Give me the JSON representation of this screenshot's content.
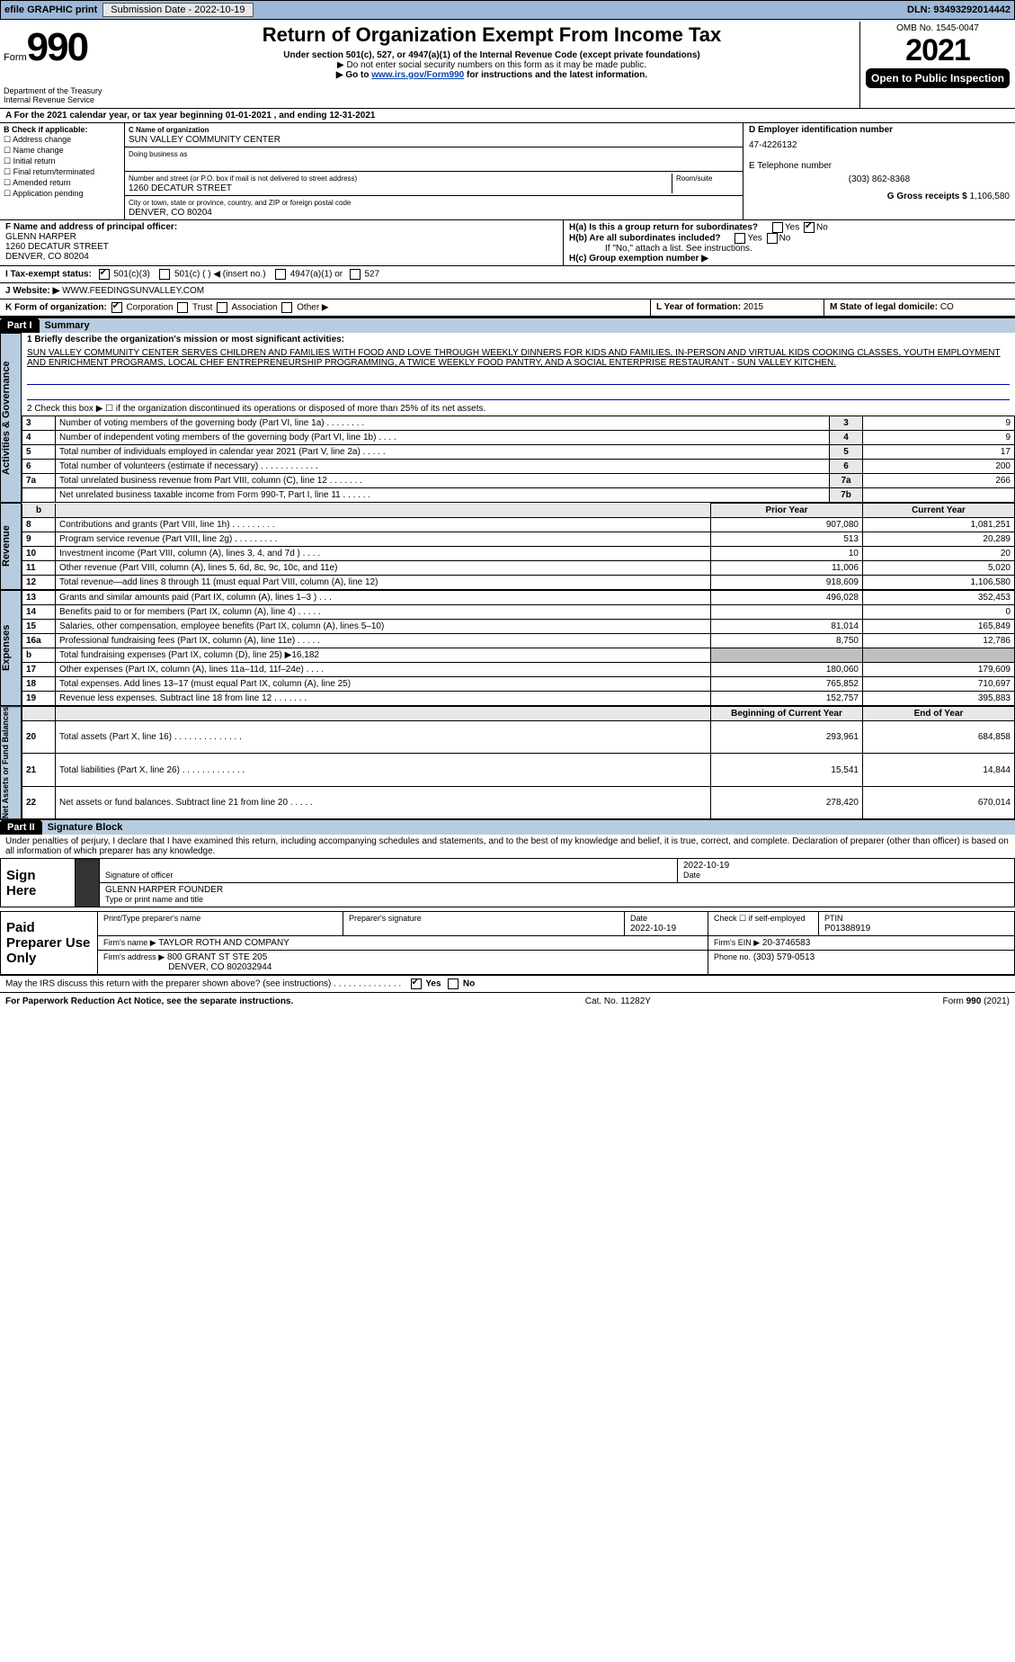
{
  "topbar": {
    "efile": "efile GRAPHIC print",
    "subdate_label": "Submission Date - 2022-10-19",
    "dln_label": "DLN: 93493292014442"
  },
  "form": {
    "prefix": "Form",
    "number": "990",
    "title": "Return of Organization Exempt From Income Tax",
    "subtitle1": "Under section 501(c), 527, or 4947(a)(1) of the Internal Revenue Code (except private foundations)",
    "subtitle2": "▶ Do not enter social security numbers on this form as it may be made public.",
    "subtitle3": "▶ Go to www.irs.gov/Form990 for instructions and the latest information.",
    "subtitle3_link": "www.irs.gov/Form990",
    "omb": "OMB No. 1545-0047",
    "year": "2021",
    "otp": "Open to Public Inspection",
    "dept": "Department of the Treasury Internal Revenue Service"
  },
  "a_line": "A For the 2021 calendar year, or tax year beginning 01-01-2021    , and ending 12-31-2021",
  "b": {
    "label": "B Check if applicable:",
    "items": [
      "Address change",
      "Name change",
      "Initial return",
      "Final return/terminated",
      "Amended return",
      "Application pending"
    ]
  },
  "c": {
    "name_label": "C Name of organization",
    "name": "SUN VALLEY COMMUNITY CENTER",
    "dba_label": "Doing business as",
    "street_label": "Number and street (or P.O. box if mail is not delivered to street address)",
    "room_label": "Room/suite",
    "street": "1260 DECATUR STREET",
    "city_label": "City or town, state or province, country, and ZIP or foreign postal code",
    "city": "DENVER, CO  80204"
  },
  "d": {
    "ein_label": "D Employer identification number",
    "ein": "47-4226132"
  },
  "e": {
    "label": "E Telephone number",
    "phone": "(303) 862-8368"
  },
  "g": {
    "label": "G Gross receipts $",
    "amount": "1,106,580"
  },
  "f": {
    "label": "F  Name and address of principal officer:",
    "name": "GLENN HARPER",
    "addr1": "1260 DECATUR STREET",
    "addr2": "DENVER, CO  80204"
  },
  "h": {
    "a_label": "H(a)  Is this a group return for subordinates?",
    "a_yes": "Yes",
    "a_no": "No",
    "b_label": "H(b)  Are all subordinates included?",
    "b_yes": "Yes",
    "b_no": "No",
    "b_note": "If \"No,\" attach a list. See instructions.",
    "c_label": "H(c)  Group exemption number ▶"
  },
  "i": {
    "label": "I  Tax-exempt status:",
    "c3": "501(c)(3)",
    "c": "501(c) (  ) ◀ (insert no.)",
    "a1": "4947(a)(1) or",
    "s527": "527"
  },
  "j": {
    "label": "J   Website: ▶",
    "url": "WWW.FEEDINGSUNVALLEY.COM"
  },
  "k": {
    "label": "K Form of organization:",
    "corp": "Corporation",
    "trust": "Trust",
    "assoc": "Association",
    "other": "Other ▶"
  },
  "l": {
    "label": "L Year of formation:",
    "val": "2015"
  },
  "m": {
    "label": "M State of legal domicile:",
    "val": "CO"
  },
  "part1": {
    "hdr": "Part I",
    "title": "Summary",
    "l1_label": "1  Briefly describe the organization's mission or most significant activities:",
    "mission": "SUN VALLEY COMMUNITY CENTER SERVES CHILDREN AND FAMILIES WITH FOOD AND LOVE THROUGH WEEKLY DINNERS FOR KIDS AND FAMILIES, IN-PERSON AND VIRTUAL KIDS COOKING CLASSES, YOUTH EMPLOYMENT AND ENRICHMENT PROGRAMS, LOCAL CHEF ENTREPRENEURSHIP PROGRAMMING, A TWICE WEEKLY FOOD PANTRY, AND A SOCIAL ENTERPRISE RESTAURANT - SUN VALLEY KITCHEN.",
    "l2": "2   Check this box ▶ ☐ if the organization discontinued its operations or disposed of more than 25% of its net assets.",
    "side_ag": "Activities & Governance",
    "side_rev": "Revenue",
    "side_exp": "Expenses",
    "side_net": "Net Assets or Fund Balances",
    "rows_ag": [
      {
        "n": "3",
        "t": "Number of voting members of the governing body (Part VI, line 1a)  .   .   .   .   .   .   .   .",
        "k": "3",
        "v": "9"
      },
      {
        "n": "4",
        "t": "Number of independent voting members of the governing body (Part VI, line 1b)  .   .   .   .",
        "k": "4",
        "v": "9"
      },
      {
        "n": "5",
        "t": "Total number of individuals employed in calendar year 2021 (Part V, line 2a)  .   .   .   .   .",
        "k": "5",
        "v": "17"
      },
      {
        "n": "6",
        "t": "Total number of volunteers (estimate if necessary)   .   .   .   .   .   .   .   .   .   .   .   .",
        "k": "6",
        "v": "200"
      },
      {
        "n": "7a",
        "t": "Total unrelated business revenue from Part VIII, column (C), line 12  .   .   .   .   .   .   .",
        "k": "7a",
        "v": "266"
      },
      {
        "n": "",
        "t": "Net unrelated business taxable income from Form 990-T, Part I, line 11   .   .   .   .   .   .",
        "k": "7b",
        "v": ""
      }
    ],
    "col_prior": "Prior Year",
    "col_curr": "Current Year",
    "rows_rev": [
      {
        "n": "8",
        "t": "Contributions and grants (Part VIII, line 1h)   .   .   .   .   .   .   .   .   .",
        "py": "907,080",
        "cy": "1,081,251"
      },
      {
        "n": "9",
        "t": "Program service revenue (Part VIII, line 2g)   .   .   .   .   .   .   .   .   .",
        "py": "513",
        "cy": "20,289"
      },
      {
        "n": "10",
        "t": "Investment income (Part VIII, column (A), lines 3, 4, and 7d )  .   .   .   .",
        "py": "10",
        "cy": "20"
      },
      {
        "n": "11",
        "t": "Other revenue (Part VIII, column (A), lines 5, 6d, 8c, 9c, 10c, and 11e)",
        "py": "11,006",
        "cy": "5,020"
      },
      {
        "n": "12",
        "t": "Total revenue—add lines 8 through 11 (must equal Part VIII, column (A), line 12)",
        "py": "918,609",
        "cy": "1,106,580"
      }
    ],
    "rows_exp": [
      {
        "n": "13",
        "t": "Grants and similar amounts paid (Part IX, column (A), lines 1–3 )  .   .   .",
        "py": "496,028",
        "cy": "352,453"
      },
      {
        "n": "14",
        "t": "Benefits paid to or for members (Part IX, column (A), line 4)  .   .   .   .   .",
        "py": "",
        "cy": "0"
      },
      {
        "n": "15",
        "t": "Salaries, other compensation, employee benefits (Part IX, column (A), lines 5–10)",
        "py": "81,014",
        "cy": "165,849"
      },
      {
        "n": "16a",
        "t": "Professional fundraising fees (Part IX, column (A), line 11e)  .   .   .   .   .",
        "py": "8,750",
        "cy": "12,786"
      },
      {
        "n": "b",
        "t": "Total fundraising expenses (Part IX, column (D), line 25) ▶16,182",
        "py": "SHADE",
        "cy": "SHADE"
      },
      {
        "n": "17",
        "t": "Other expenses (Part IX, column (A), lines 11a–11d, 11f–24e)  .   .   .   .",
        "py": "180,060",
        "cy": "179,609"
      },
      {
        "n": "18",
        "t": "Total expenses. Add lines 13–17 (must equal Part IX, column (A), line 25)",
        "py": "765,852",
        "cy": "710,697"
      },
      {
        "n": "19",
        "t": "Revenue less expenses. Subtract line 18 from line 12  .   .   .   .   .   .   .",
        "py": "152,757",
        "cy": "395,883"
      }
    ],
    "col_boy": "Beginning of Current Year",
    "col_eoy": "End of Year",
    "rows_net": [
      {
        "n": "20",
        "t": "Total assets (Part X, line 16)  .   .   .   .   .   .   .   .   .   .   .   .   .   .",
        "py": "293,961",
        "cy": "684,858"
      },
      {
        "n": "21",
        "t": "Total liabilities (Part X, line 26)  .   .   .   .   .   .   .   .   .   .   .   .   .",
        "py": "15,541",
        "cy": "14,844"
      },
      {
        "n": "22",
        "t": "Net assets or fund balances. Subtract line 21 from line 20   .   .   .   .   .",
        "py": "278,420",
        "cy": "670,014"
      }
    ]
  },
  "part2": {
    "hdr": "Part II",
    "title": "Signature Block",
    "perjury": "Under penalties of perjury, I declare that I have examined this return, including accompanying schedules and statements, and to the best of my knowledge and belief, it is true, correct, and complete. Declaration of preparer (other than officer) is based on all information of which preparer has any knowledge.",
    "sign_here": "Sign Here",
    "sig_officer": "Signature of officer",
    "date": "Date",
    "date_val": "2022-10-19",
    "name_label": "Type or print name and title",
    "name_val": "GLENN HARPER  FOUNDER",
    "paid": "Paid Preparer Use Only",
    "pp_name_label": "Print/Type preparer's name",
    "pp_sig_label": "Preparer's signature",
    "pp_date_label": "Date",
    "pp_date": "2022-10-19",
    "pp_check": "Check ☐ if self-employed",
    "ptin_label": "PTIN",
    "ptin": "P01388919",
    "firm_name_label": "Firm's name      ▶",
    "firm_name": "TAYLOR ROTH AND COMPANY",
    "firm_ein_label": "Firm's EIN ▶",
    "firm_ein": "20-3746583",
    "firm_addr_label": "Firm's address ▶",
    "firm_addr1": "800 GRANT ST STE 205",
    "firm_addr2": "DENVER, CO  802032944",
    "firm_phone_label": "Phone no.",
    "firm_phone": "(303) 579-0513",
    "discuss": "May the IRS discuss this return with the preparer shown above? (see instructions)   .   .   .   .   .   .   .   .   .   .   .   .   .   .",
    "yes": "Yes",
    "no": "No"
  },
  "foot": {
    "pra": "For Paperwork Reduction Act Notice, see the separate instructions.",
    "cat": "Cat. No. 11282Y",
    "form": "Form 990 (2021)"
  },
  "colors": {
    "bar": "#9db8d8",
    "parttitle": "#b8cce0",
    "link": "#0645ad"
  }
}
